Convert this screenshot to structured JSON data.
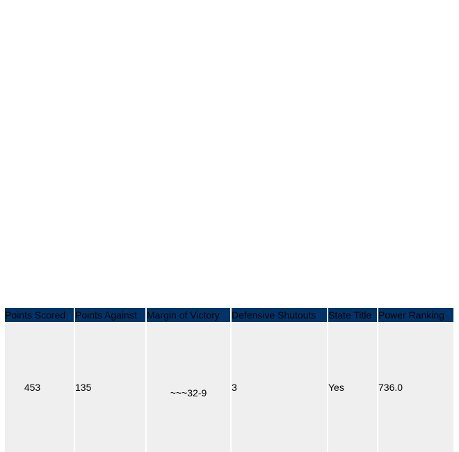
{
  "table": {
    "headers": [
      "Points Scored",
      "Points Against",
      "Margin of Victory",
      "Defensive Shutouts",
      "State Title",
      "Power Ranking"
    ],
    "rows": [
      [
        "453",
        "135",
        "~~~32-9",
        "3",
        "Yes",
        "736.0"
      ]
    ]
  }
}
